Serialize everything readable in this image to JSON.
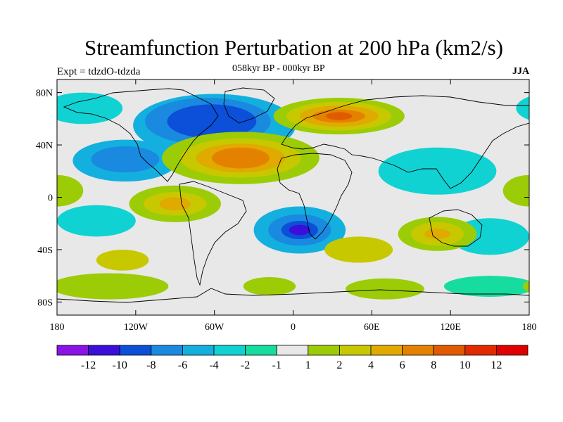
{
  "title": "Streamfunction Perturbation at 200 hPa (km2/s)",
  "subtitle": "058kyr BP - 000kyr BP",
  "experiment": "Expt = tdzdO-tdzda",
  "season": "JJA",
  "map": {
    "lon_range": [
      -180,
      180
    ],
    "lat_range": [
      -90,
      90
    ],
    "lat_tick_labels": [
      "80N",
      "40N",
      "0",
      "40S",
      "80S"
    ],
    "lat_tick_values": [
      80,
      40,
      0,
      -40,
      -80
    ],
    "lon_tick_labels": [
      "180",
      "120W",
      "60W",
      "0",
      "60E",
      "120E",
      "180"
    ],
    "lon_tick_values": [
      -180,
      -120,
      -60,
      0,
      60,
      120,
      180
    ]
  },
  "colorbar": {
    "colors": [
      "#8a13e6",
      "#3b0fd9",
      "#0c4fd8",
      "#1a8ae0",
      "#13b0df",
      "#11d2d2",
      "#16dca0",
      "#e8e8e8",
      "#9ccc06",
      "#c8c800",
      "#e0aa00",
      "#e48200",
      "#e25a00",
      "#e22a00",
      "#e00000"
    ],
    "labels": [
      "-12",
      "-10",
      "-8",
      "-6",
      "-4",
      "-2",
      "-1",
      "1",
      "2",
      "4",
      "6",
      "8",
      "10",
      "12"
    ]
  },
  "blobs": [
    {
      "lon": -60,
      "lat": 55,
      "rlon": 62,
      "rlat": 24,
      "level": 4
    },
    {
      "lon": -65,
      "lat": 58,
      "rlon": 48,
      "rlat": 18,
      "level": 3
    },
    {
      "lon": -62,
      "lat": 58,
      "rlon": 34,
      "rlat": 13,
      "level": 2
    },
    {
      "lon": -128,
      "lat": 28,
      "rlon": 40,
      "rlat": 16,
      "level": 4
    },
    {
      "lon": -128,
      "lat": 29,
      "rlon": 26,
      "rlat": 10,
      "level": 3
    },
    {
      "lon": -160,
      "lat": 68,
      "rlon": 30,
      "rlat": 12,
      "level": 5
    },
    {
      "lon": -150,
      "lat": -18,
      "rlon": 30,
      "rlat": 12,
      "level": 5
    },
    {
      "lon": 5,
      "lat": -25,
      "rlon": 35,
      "rlat": 18,
      "level": 4
    },
    {
      "lon": 5,
      "lat": -25,
      "rlon": 24,
      "rlat": 12,
      "level": 3
    },
    {
      "lon": 5,
      "lat": -25,
      "rlon": 14,
      "rlat": 7,
      "level": 2
    },
    {
      "lon": 5,
      "lat": -25,
      "rlon": 8,
      "rlat": 4,
      "level": 1
    },
    {
      "lon": 110,
      "lat": 20,
      "rlon": 45,
      "rlat": 18,
      "level": 5
    },
    {
      "lon": 150,
      "lat": -30,
      "rlon": 30,
      "rlat": 14,
      "level": 5
    },
    {
      "lon": 150,
      "lat": -68,
      "rlon": 35,
      "rlat": 8,
      "level": 6
    },
    {
      "lon": -140,
      "lat": -68,
      "rlon": 45,
      "rlat": 10,
      "level": 8
    },
    {
      "lon": 70,
      "lat": -70,
      "rlon": 30,
      "rlat": 8,
      "level": 8
    },
    {
      "lon": -40,
      "lat": 30,
      "rlon": 60,
      "rlat": 20,
      "level": 8
    },
    {
      "lon": -40,
      "lat": 30,
      "rlon": 46,
      "rlat": 15,
      "level": 9
    },
    {
      "lon": -40,
      "lat": 30,
      "rlon": 34,
      "rlat": 11,
      "level": 10
    },
    {
      "lon": -40,
      "lat": 30,
      "rlon": 22,
      "rlat": 8,
      "level": 11
    },
    {
      "lon": -90,
      "lat": -5,
      "rlon": 35,
      "rlat": 14,
      "level": 8
    },
    {
      "lon": -90,
      "lat": -5,
      "rlon": 24,
      "rlat": 9,
      "level": 9
    },
    {
      "lon": -90,
      "lat": -5,
      "rlon": 12,
      "rlat": 5,
      "level": 10
    },
    {
      "lon": 35,
      "lat": 62,
      "rlon": 50,
      "rlat": 14,
      "level": 8
    },
    {
      "lon": 35,
      "lat": 62,
      "rlon": 40,
      "rlat": 11,
      "level": 9
    },
    {
      "lon": 35,
      "lat": 62,
      "rlon": 30,
      "rlat": 8,
      "level": 10
    },
    {
      "lon": 35,
      "lat": 62,
      "rlon": 20,
      "rlat": 5,
      "level": 11
    },
    {
      "lon": 35,
      "lat": 62,
      "rlon": 10,
      "rlat": 3,
      "level": 12
    },
    {
      "lon": 110,
      "lat": -28,
      "rlon": 30,
      "rlat": 13,
      "level": 8
    },
    {
      "lon": 110,
      "lat": -28,
      "rlon": 20,
      "rlat": 9,
      "level": 9
    },
    {
      "lon": 110,
      "lat": -28,
      "rlon": 10,
      "rlat": 4,
      "level": 10
    },
    {
      "lon": -130,
      "lat": -48,
      "rlon": 20,
      "rlat": 8,
      "level": 9
    },
    {
      "lon": 50,
      "lat": -40,
      "rlon": 26,
      "rlat": 10,
      "level": 9
    },
    {
      "lon": -18,
      "lat": -68,
      "rlon": 20,
      "rlat": 7,
      "level": 8
    },
    {
      "lon": -180,
      "lat": 5,
      "rlon": 20,
      "rlat": 12,
      "level": 8
    }
  ]
}
